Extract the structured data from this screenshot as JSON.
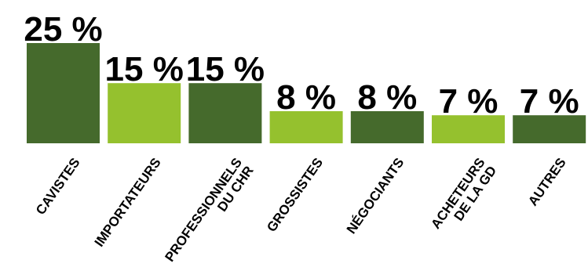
{
  "chart_data": {
    "type": "bar",
    "categories": [
      [
        "CAVISTES"
      ],
      [
        "IMPORTATEURS"
      ],
      [
        "PROFESSIONNELS",
        "DU CHR"
      ],
      [
        "GROSSISTES"
      ],
      [
        "NÉGOCIANTS"
      ],
      [
        "ACHETEURS",
        "DE LA GD"
      ],
      [
        "AUTRES"
      ]
    ],
    "values": [
      25,
      15,
      15,
      8,
      8,
      7,
      7
    ],
    "value_labels": [
      "25 %",
      "15 %",
      "15 %",
      "8 %",
      "8 %",
      "7 %",
      "7 %"
    ],
    "title": "",
    "xlabel": "",
    "ylabel": "",
    "ylim": [
      0,
      25
    ],
    "grid": false,
    "legend": "none",
    "colors": {
      "dark_green": "#456a2c",
      "light_green": "#95c12e"
    },
    "bar_colors": [
      "#456a2c",
      "#95c12e",
      "#456a2c",
      "#95c12e",
      "#456a2c",
      "#95c12e",
      "#456a2c"
    ]
  }
}
